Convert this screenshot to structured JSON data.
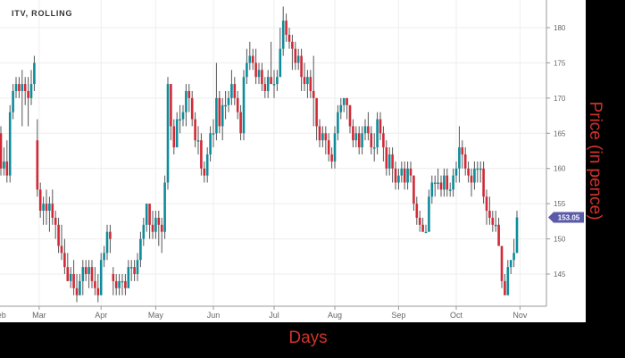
{
  "chart_data": {
    "type": "candlestick",
    "title": "ITV, ROLLING",
    "xlabel": "Days",
    "ylabel": "Price (in pence)",
    "ylim": [
      140.4,
      183.9
    ],
    "yticks": [
      145,
      150,
      155,
      160,
      165,
      170,
      175,
      180
    ],
    "grid": true,
    "x_tick_labels": [
      {
        "label": "Feb",
        "index": -0.6
      },
      {
        "label": "Mar",
        "index": 12.6
      },
      {
        "label": "Apr",
        "index": 33
      },
      {
        "label": "May",
        "index": 51
      },
      {
        "label": "Jun",
        "index": 70
      },
      {
        "label": "Jul",
        "index": 90
      },
      {
        "label": "Aug",
        "index": 110
      },
      {
        "label": "Sep",
        "index": 131
      },
      {
        "label": "Oct",
        "index": 150
      },
      {
        "label": "Nov",
        "index": 171
      }
    ],
    "last_price_label": "153.05",
    "colors": {
      "up": "#0e8c9b",
      "down": "#d12a36",
      "wick": "#555555",
      "last_price_bg": "#5a5aa8"
    },
    "ohlc": [
      [
        165,
        166,
        159,
        160
      ],
      [
        160,
        163,
        159,
        161
      ],
      [
        161,
        164,
        158,
        159
      ],
      [
        159,
        169,
        158,
        168
      ],
      [
        168,
        172,
        167,
        171
      ],
      [
        171,
        173,
        170,
        172
      ],
      [
        172,
        173,
        170,
        171
      ],
      [
        171,
        174,
        166,
        172
      ],
      [
        172,
        173,
        169,
        171
      ],
      [
        171,
        173,
        166,
        170
      ],
      [
        170,
        174,
        169,
        172
      ],
      [
        172,
        176,
        171,
        175
      ],
      [
        164,
        167,
        156,
        157
      ],
      [
        157,
        158,
        153,
        154
      ],
      [
        154,
        156,
        152,
        155
      ],
      [
        155,
        157,
        152,
        154
      ],
      [
        154,
        156,
        151,
        155
      ],
      [
        155,
        157,
        152,
        153
      ],
      [
        153,
        154,
        150,
        152
      ],
      [
        152,
        153,
        148,
        149
      ],
      [
        149,
        152,
        147,
        148
      ],
      [
        148,
        150,
        145,
        146
      ],
      [
        146,
        148,
        144,
        144
      ],
      [
        144,
        146,
        143,
        145
      ],
      [
        145,
        147,
        142,
        143
      ],
      [
        143,
        145,
        141,
        142
      ],
      [
        142,
        145,
        142,
        144
      ],
      [
        144,
        147,
        142,
        146
      ],
      [
        146,
        147,
        144,
        145
      ],
      [
        145,
        147,
        143,
        146
      ],
      [
        146,
        147,
        143,
        144
      ],
      [
        144,
        146,
        142,
        143
      ],
      [
        143,
        145,
        141,
        142
      ],
      [
        142,
        148,
        142,
        147
      ],
      [
        147,
        149,
        146,
        148
      ],
      [
        148,
        152,
        147,
        151
      ],
      [
        151,
        152,
        148,
        150
      ],
      [
        145,
        146,
        142,
        144
      ],
      [
        144,
        145,
        142,
        143
      ],
      [
        143,
        145,
        142,
        144
      ],
      [
        144,
        145,
        142,
        144
      ],
      [
        144,
        145,
        142,
        143
      ],
      [
        143,
        147,
        143,
        146
      ],
      [
        146,
        147,
        144,
        146
      ],
      [
        146,
        147,
        144,
        145
      ],
      [
        145,
        148,
        144,
        147
      ],
      [
        147,
        151,
        146,
        150
      ],
      [
        150,
        153,
        149,
        152
      ],
      [
        152,
        155,
        151,
        155
      ],
      [
        155,
        155,
        150,
        152
      ],
      [
        152,
        154,
        150,
        151
      ],
      [
        151,
        154,
        150,
        153
      ],
      [
        153,
        154,
        149,
        152
      ],
      [
        152,
        153,
        148,
        151
      ],
      [
        151,
        159,
        150,
        158
      ],
      [
        158,
        173,
        157,
        172
      ],
      [
        172,
        172,
        164,
        166
      ],
      [
        166,
        167,
        162,
        163
      ],
      [
        163,
        168,
        163,
        167
      ],
      [
        167,
        169,
        165,
        167
      ],
      [
        167,
        169,
        166,
        168
      ],
      [
        168,
        172,
        166,
        171
      ],
      [
        171,
        172,
        168,
        170
      ],
      [
        170,
        171,
        166,
        167
      ],
      [
        167,
        168,
        163,
        164
      ],
      [
        164,
        166,
        162,
        164
      ],
      [
        164,
        165,
        159,
        160
      ],
      [
        160,
        161,
        158,
        159
      ],
      [
        159,
        163,
        158,
        162
      ],
      [
        162,
        166,
        161,
        165
      ],
      [
        165,
        167,
        163,
        165
      ],
      [
        165,
        175,
        164,
        170
      ],
      [
        170,
        171,
        165,
        166
      ],
      [
        166,
        170,
        164,
        169
      ],
      [
        169,
        171,
        167,
        169
      ],
      [
        169,
        171,
        168,
        170
      ],
      [
        170,
        174,
        169,
        172
      ],
      [
        172,
        173,
        169,
        170
      ],
      [
        170,
        171,
        167,
        168
      ],
      [
        168,
        169,
        164,
        165
      ],
      [
        165,
        174,
        164,
        173
      ],
      [
        173,
        177,
        172,
        175
      ],
      [
        175,
        178,
        174,
        176
      ],
      [
        176,
        177,
        174,
        175
      ],
      [
        175,
        177,
        172,
        173
      ],
      [
        173,
        175,
        172,
        174
      ],
      [
        174,
        175,
        171,
        172
      ],
      [
        172,
        173,
        170,
        171
      ],
      [
        171,
        174,
        170,
        173
      ],
      [
        173,
        178,
        172,
        172
      ],
      [
        172,
        174,
        170,
        172
      ],
      [
        172,
        174,
        171,
        173
      ],
      [
        173,
        180,
        173,
        177
      ],
      [
        177,
        183,
        176,
        181
      ],
      [
        181,
        182,
        178,
        179
      ],
      [
        179,
        180,
        177,
        178
      ],
      [
        178,
        179,
        174,
        177
      ],
      [
        177,
        178,
        174,
        175
      ],
      [
        175,
        177,
        174,
        176
      ],
      [
        176,
        177,
        171,
        173
      ],
      [
        173,
        175,
        171,
        172
      ],
      [
        172,
        174,
        170,
        173
      ],
      [
        173,
        174,
        170,
        171
      ],
      [
        171,
        176,
        166,
        170
      ],
      [
        170,
        170,
        164,
        166
      ],
      [
        166,
        167,
        163,
        164
      ],
      [
        164,
        166,
        163,
        165
      ],
      [
        165,
        166,
        162,
        164
      ],
      [
        164,
        165,
        161,
        162
      ],
      [
        162,
        163,
        160,
        161
      ],
      [
        161,
        166,
        160,
        165
      ],
      [
        165,
        169,
        164,
        168
      ],
      [
        168,
        170,
        167,
        169
      ],
      [
        169,
        170,
        168,
        170
      ],
      [
        170,
        170,
        167,
        169
      ],
      [
        169,
        169,
        165,
        166
      ],
      [
        166,
        167,
        163,
        164
      ],
      [
        164,
        166,
        163,
        165
      ],
      [
        165,
        166,
        162,
        163
      ],
      [
        163,
        166,
        162,
        165
      ],
      [
        165,
        167,
        164,
        166
      ],
      [
        166,
        168,
        164,
        165
      ],
      [
        165,
        166,
        162,
        163
      ],
      [
        163,
        165,
        161,
        163
      ],
      [
        163,
        168,
        162,
        167
      ],
      [
        167,
        168,
        164,
        165
      ],
      [
        165,
        166,
        161,
        163
      ],
      [
        163,
        164,
        159,
        160
      ],
      [
        160,
        163,
        159,
        162
      ],
      [
        162,
        163,
        158,
        160
      ],
      [
        160,
        161,
        157,
        158
      ],
      [
        158,
        160,
        157,
        159
      ],
      [
        159,
        161,
        158,
        160
      ],
      [
        160,
        161,
        157,
        158
      ],
      [
        158,
        161,
        157,
        160
      ],
      [
        160,
        161,
        158,
        159
      ],
      [
        159,
        159,
        154,
        155
      ],
      [
        155,
        156,
        152,
        153
      ],
      [
        153,
        154,
        151,
        152
      ],
      [
        152,
        153,
        151,
        151
      ],
      [
        151,
        152,
        151,
        151
      ],
      [
        151,
        157,
        151,
        156
      ],
      [
        156,
        159,
        155,
        158
      ],
      [
        158,
        159,
        156,
        158
      ],
      [
        158,
        160,
        157,
        158
      ],
      [
        158,
        159,
        156,
        157
      ],
      [
        157,
        160,
        156,
        159
      ],
      [
        159,
        160,
        156,
        157
      ],
      [
        157,
        158,
        156,
        157
      ],
      [
        157,
        160,
        156,
        159
      ],
      [
        159,
        161,
        158,
        160
      ],
      [
        160,
        166,
        158,
        163
      ],
      [
        163,
        164,
        160,
        162
      ],
      [
        162,
        163,
        159,
        160
      ],
      [
        160,
        161,
        158,
        159
      ],
      [
        159,
        160,
        156,
        158
      ],
      [
        158,
        161,
        157,
        160
      ],
      [
        160,
        161,
        158,
        160
      ],
      [
        160,
        161,
        158,
        160
      ],
      [
        160,
        161,
        155,
        156
      ],
      [
        156,
        157,
        152,
        154
      ],
      [
        154,
        156,
        152,
        153
      ],
      [
        153,
        154,
        151,
        152
      ],
      [
        152,
        154,
        151,
        152
      ],
      [
        152,
        153,
        149,
        149
      ],
      [
        149,
        149,
        143,
        144
      ],
      [
        144,
        145,
        142,
        142
      ],
      [
        142,
        147,
        142,
        146
      ],
      [
        146,
        147,
        145,
        147
      ],
      [
        147,
        150,
        146,
        148
      ],
      [
        148,
        154,
        148,
        153.05
      ]
    ]
  }
}
